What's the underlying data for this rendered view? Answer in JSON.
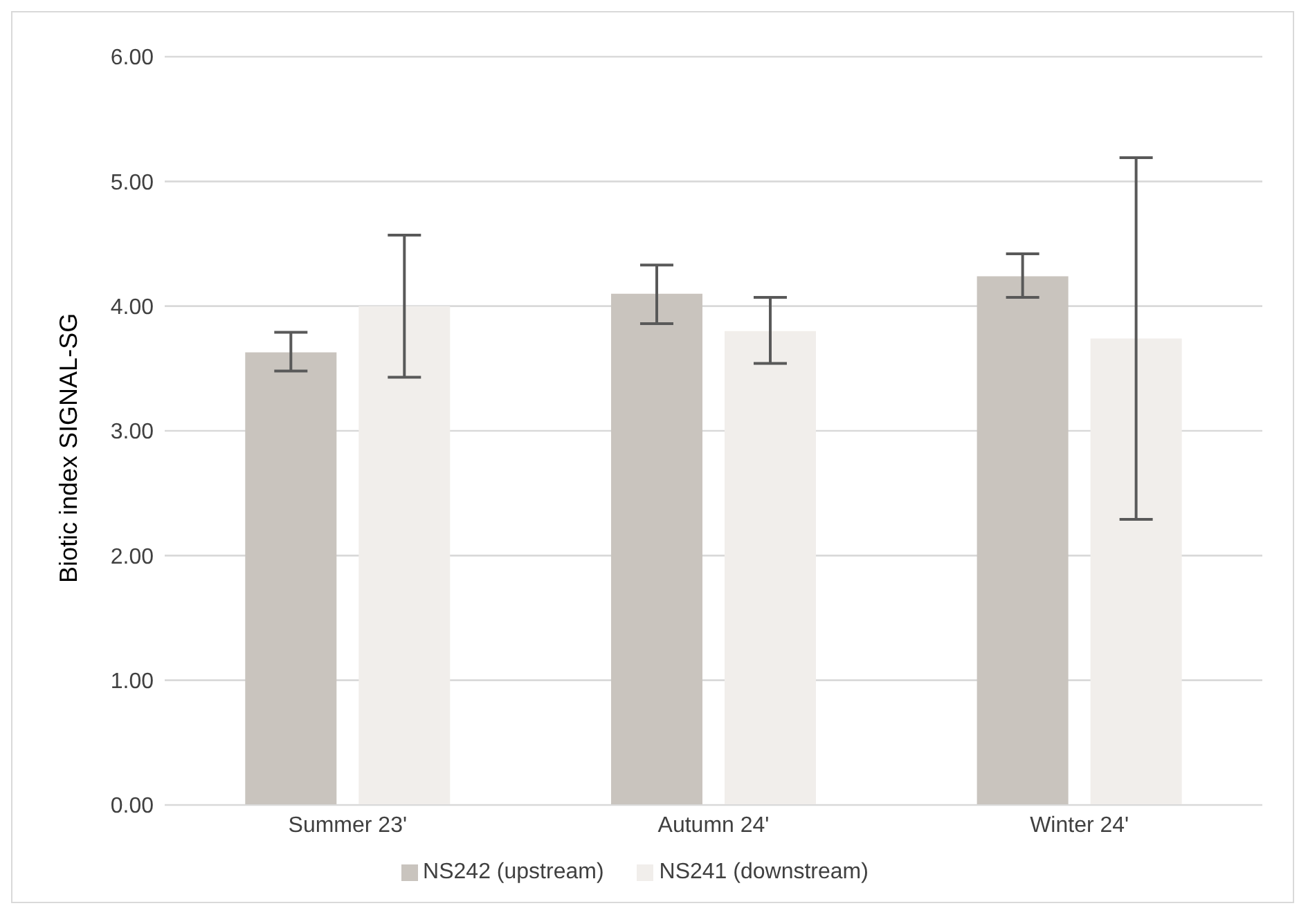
{
  "chart_data": {
    "type": "bar",
    "ylabel": "Biotic index SIGNAL-SG",
    "categories": [
      "Summer 23'",
      "Autumn 24'",
      "Winter 24'"
    ],
    "series": [
      {
        "name": "NS242 (upstream)",
        "color": "#c9c4be",
        "values": [
          3.63,
          4.1,
          4.24
        ],
        "errors": [
          [
            3.48,
            3.79
          ],
          [
            3.86,
            4.33
          ],
          [
            4.07,
            4.42
          ]
        ]
      },
      {
        "name": "NS241 (downstream)",
        "color": "#f1eeeb",
        "values": [
          4.0,
          3.8,
          3.74
        ],
        "errors": [
          [
            3.43,
            4.57
          ],
          [
            3.54,
            4.07
          ],
          [
            2.29,
            5.19
          ]
        ]
      }
    ],
    "ylim": [
      0,
      6
    ],
    "yticks": [
      {
        "value": 0,
        "label": "0.00"
      },
      {
        "value": 1,
        "label": "1.00"
      },
      {
        "value": 2,
        "label": "2.00"
      },
      {
        "value": 3,
        "label": "3.00"
      },
      {
        "value": 4,
        "label": "4.00"
      },
      {
        "value": 5,
        "label": "5.00"
      },
      {
        "value": 6,
        "label": "6.00"
      }
    ],
    "grid": "y",
    "legend": "bottom"
  }
}
